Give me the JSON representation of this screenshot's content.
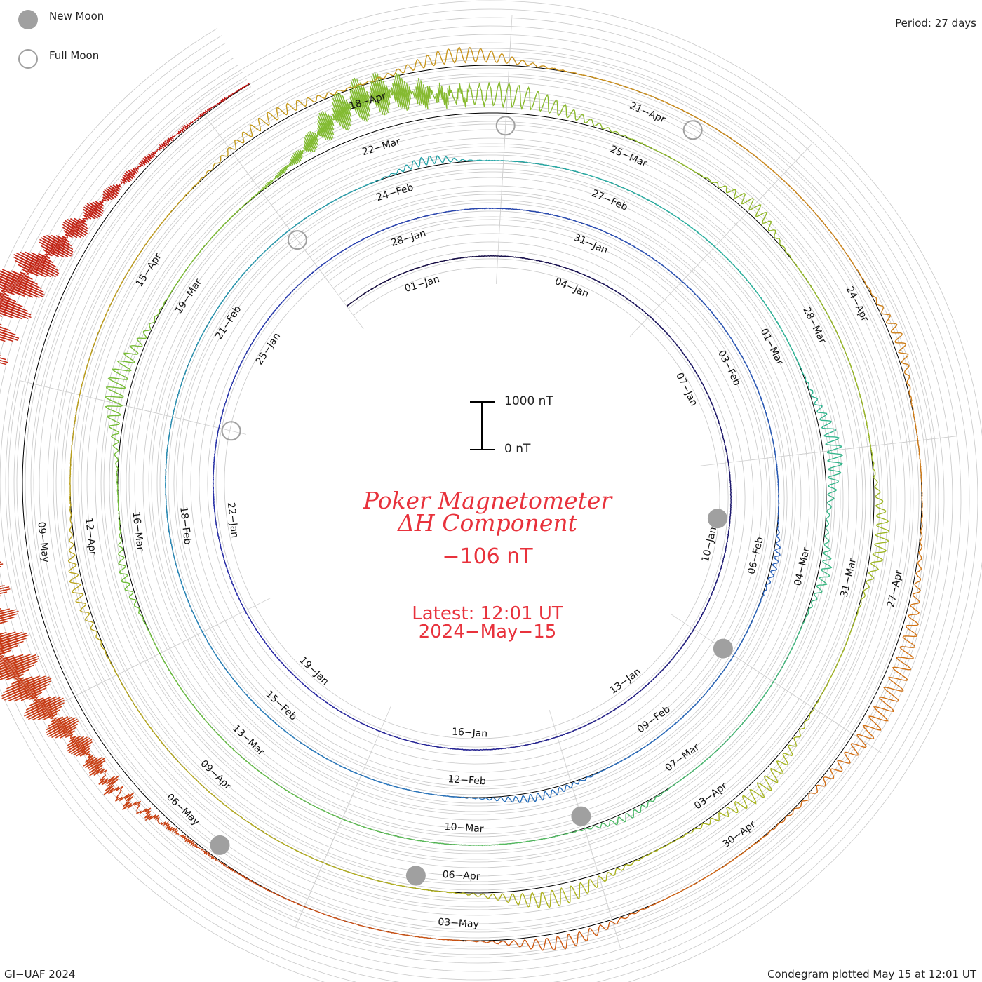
{
  "legend": {
    "new_moon": "New Moon",
    "full_moon": "Full Moon"
  },
  "header": {
    "period": "Period: 27 days"
  },
  "title": {
    "line1": "Poker Magnetometer",
    "line2": "ΔH Component",
    "current_value": "−106 nT",
    "latest_time": "Latest: 12:01 UT",
    "latest_date": "2024−May−15"
  },
  "scale": {
    "top_label": "1000 nT",
    "bottom_label": "0 nT"
  },
  "footer": {
    "credit": "GI−UAF 2024",
    "plotted": "Condegram plotted May 15 at 12:01 UT"
  },
  "chart_data": {
    "type": "line",
    "layout": "spiral condegram",
    "period_days": 27,
    "start_date": "2024-01-01",
    "end_date": "2024-05-15",
    "units": "nT",
    "scale_bar": [
      0,
      1000
    ],
    "current_value_nT": -106,
    "date_labels": [
      {
        "text": "01−Jan",
        "day": 0
      },
      {
        "text": "04−Jan",
        "day": 3
      },
      {
        "text": "07−Jan",
        "day": 6
      },
      {
        "text": "10−Jan",
        "day": 9
      },
      {
        "text": "13−Jan",
        "day": 12
      },
      {
        "text": "16−Jan",
        "day": 15
      },
      {
        "text": "19−Jan",
        "day": 18
      },
      {
        "text": "22−Jan",
        "day": 21
      },
      {
        "text": "25−Jan",
        "day": 24
      },
      {
        "text": "28−Jan",
        "day": 27
      },
      {
        "text": "31−Jan",
        "day": 30
      },
      {
        "text": "03−Feb",
        "day": 33
      },
      {
        "text": "06−Feb",
        "day": 36
      },
      {
        "text": "09−Feb",
        "day": 39
      },
      {
        "text": "12−Feb",
        "day": 42
      },
      {
        "text": "15−Feb",
        "day": 45
      },
      {
        "text": "18−Feb",
        "day": 48
      },
      {
        "text": "21−Feb",
        "day": 51
      },
      {
        "text": "24−Feb",
        "day": 54
      },
      {
        "text": "27−Feb",
        "day": 57
      },
      {
        "text": "01−Mar",
        "day": 60
      },
      {
        "text": "04−Mar",
        "day": 63
      },
      {
        "text": "07−Mar",
        "day": 66
      },
      {
        "text": "10−Mar",
        "day": 69
      },
      {
        "text": "13−Mar",
        "day": 72
      },
      {
        "text": "16−Mar",
        "day": 75
      },
      {
        "text": "19−Mar",
        "day": 78
      },
      {
        "text": "22−Mar",
        "day": 81
      },
      {
        "text": "25−Mar",
        "day": 84
      },
      {
        "text": "28−Mar",
        "day": 87
      },
      {
        "text": "31−Mar",
        "day": 90
      },
      {
        "text": "03−Apr",
        "day": 93
      },
      {
        "text": "06−Apr",
        "day": 96
      },
      {
        "text": "09−Apr",
        "day": 99
      },
      {
        "text": "12−Apr",
        "day": 102
      },
      {
        "text": "15−Apr",
        "day": 105
      },
      {
        "text": "18−Apr",
        "day": 108
      },
      {
        "text": "21−Apr",
        "day": 111
      },
      {
        "text": "24−Apr",
        "day": 114
      },
      {
        "text": "27−Apr",
        "day": 117
      },
      {
        "text": "30−Apr",
        "day": 120
      },
      {
        "text": "03−May",
        "day": 123
      },
      {
        "text": "06−May",
        "day": 126
      },
      {
        "text": "09−May",
        "day": 129
      }
    ],
    "new_moons": [
      "2024-01-11",
      "2024-02-09",
      "2024-03-10",
      "2024-04-08",
      "2024-05-07"
    ],
    "full_moons": [
      "2024-01-25",
      "2024-02-24",
      "2024-03-25",
      "2024-04-23"
    ],
    "disturbances": [
      {
        "day": 37.5,
        "peak_nT": 150,
        "width": 0.4
      },
      {
        "day": 42.5,
        "peak_nT": 200,
        "width": 0.6
      },
      {
        "day": 56,
        "peak_nT": 220,
        "width": 0.4
      },
      {
        "day": 63,
        "peak_nT": 400,
        "width": 0.6
      },
      {
        "day": 64.5,
        "peak_nT": 250,
        "width": 0.4
      },
      {
        "day": 68.5,
        "peak_nT": 180,
        "width": 0.4
      },
      {
        "day": 76,
        "peak_nT": 200,
        "width": 0.4
      },
      {
        "day": 78.2,
        "peak_nT": 500,
        "width": 0.6
      },
      {
        "day": 82.5,
        "peak_nT": 1200,
        "width": 0.8
      },
      {
        "day": 84,
        "peak_nT": 600,
        "width": 0.8
      },
      {
        "day": 87,
        "peak_nT": 300,
        "width": 0.4
      },
      {
        "day": 91,
        "peak_nT": 350,
        "width": 0.5
      },
      {
        "day": 94,
        "peak_nT": 400,
        "width": 0.6
      },
      {
        "day": 96.5,
        "peak_nT": 450,
        "width": 0.6
      },
      {
        "day": 103,
        "peak_nT": 250,
        "width": 0.5
      },
      {
        "day": 108.5,
        "peak_nT": 300,
        "width": 0.6
      },
      {
        "day": 110.5,
        "peak_nT": 400,
        "width": 0.6
      },
      {
        "day": 116,
        "peak_nT": 250,
        "width": 0.4
      },
      {
        "day": 119.5,
        "peak_nT": 500,
        "width": 1.0
      },
      {
        "day": 123.5,
        "peak_nT": 350,
        "width": 0.5
      },
      {
        "day": 128,
        "peak_nT": 300,
        "width": 0.4
      },
      {
        "day": 131,
        "peak_nT": 3000,
        "width": 2.0
      },
      {
        "day": 132,
        "peak_nT": 900,
        "width": 0.8
      }
    ]
  }
}
